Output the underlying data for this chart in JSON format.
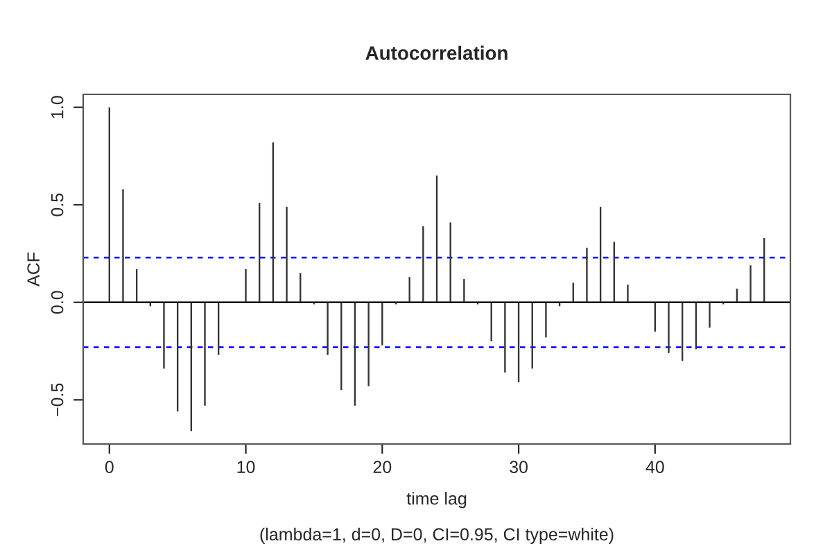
{
  "chart_data": {
    "type": "bar",
    "title": "Autocorrelation",
    "xlabel": "time lag",
    "ylabel": "ACF",
    "annotations": [
      "(lambda=1, d=0, D=0, CI=0.95, CI type=white)"
    ],
    "x": [
      0,
      1,
      2,
      3,
      4,
      5,
      6,
      7,
      8,
      9,
      10,
      11,
      12,
      13,
      14,
      15,
      16,
      17,
      18,
      19,
      20,
      21,
      22,
      23,
      24,
      25,
      26,
      27,
      28,
      29,
      30,
      31,
      32,
      33,
      34,
      35,
      36,
      37,
      38,
      39,
      40,
      41,
      42,
      43,
      44,
      45,
      46,
      47,
      48
    ],
    "values": [
      1.0,
      0.58,
      0.17,
      -0.02,
      -0.34,
      -0.56,
      -0.66,
      -0.53,
      -0.27,
      0.0,
      0.17,
      0.51,
      0.82,
      0.49,
      0.15,
      -0.01,
      -0.27,
      -0.45,
      -0.53,
      -0.43,
      -0.22,
      -0.01,
      0.13,
      0.39,
      0.65,
      0.41,
      0.12,
      -0.01,
      -0.2,
      -0.36,
      -0.41,
      -0.34,
      -0.18,
      -0.02,
      0.1,
      0.28,
      0.49,
      0.31,
      0.09,
      0.0,
      -0.15,
      -0.26,
      -0.3,
      -0.24,
      -0.13,
      -0.01,
      0.07,
      0.19,
      0.33
    ],
    "color": "#333333",
    "ref_lines": [
      {
        "axis": "y",
        "value": 0.23,
        "color": "#0000ff",
        "line_style": "dashed"
      },
      {
        "axis": "y",
        "value": -0.23,
        "color": "#0000ff",
        "line_style": "dashed"
      },
      {
        "axis": "y",
        "value": 0,
        "color": "#000000",
        "line_style": "solid"
      }
    ],
    "xlim": [
      -1.92,
      49.92
    ],
    "xticks": [
      0,
      10,
      20,
      30,
      40
    ],
    "ylim": [
      -0.7264,
      1.0664
    ],
    "yticks": [
      {
        "value": -0.5,
        "label": "−0.5"
      },
      {
        "value": 0,
        "label": "0.0"
      },
      {
        "value": 0.5,
        "label": "0.5"
      },
      {
        "value": 1.0,
        "label": "1.0"
      }
    ],
    "grid": false,
    "legend": false
  }
}
